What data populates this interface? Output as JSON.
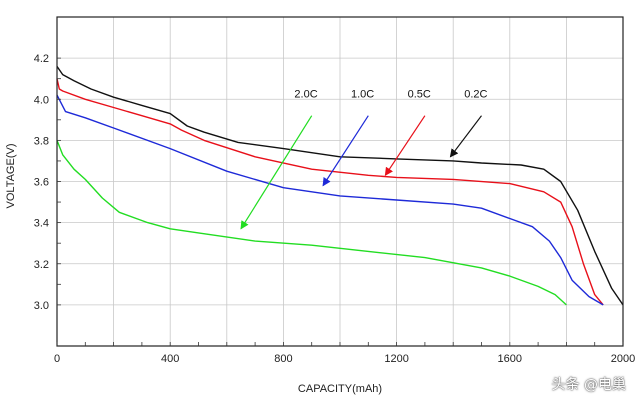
{
  "watermark": "头条 @电巢",
  "chart_data": {
    "type": "line",
    "title": "",
    "xlabel": "CAPACITY(mAh)",
    "ylabel": "VOLTAGE(V)",
    "xlim": [
      0,
      2000
    ],
    "ylim": [
      2.8,
      4.4
    ],
    "xticks": [
      0,
      400,
      800,
      1200,
      1600,
      2000
    ],
    "yticks": [
      3.0,
      3.2,
      3.4,
      3.6,
      3.8,
      4.0,
      4.2
    ],
    "grid": true,
    "series": [
      {
        "name": "0.2C",
        "color": "#111111",
        "points": [
          [
            0,
            4.16
          ],
          [
            20,
            4.12
          ],
          [
            60,
            4.09
          ],
          [
            120,
            4.05
          ],
          [
            200,
            4.01
          ],
          [
            300,
            3.97
          ],
          [
            400,
            3.93
          ],
          [
            460,
            3.87
          ],
          [
            520,
            3.84
          ],
          [
            640,
            3.79
          ],
          [
            800,
            3.76
          ],
          [
            1000,
            3.72
          ],
          [
            1200,
            3.71
          ],
          [
            1400,
            3.7
          ],
          [
            1500,
            3.69
          ],
          [
            1640,
            3.68
          ],
          [
            1720,
            3.66
          ],
          [
            1780,
            3.6
          ],
          [
            1840,
            3.46
          ],
          [
            1900,
            3.26
          ],
          [
            1960,
            3.08
          ],
          [
            2000,
            3.0
          ]
        ]
      },
      {
        "name": "0.5C",
        "color": "#e8101a",
        "points": [
          [
            0,
            4.1
          ],
          [
            8,
            4.05
          ],
          [
            20,
            4.04
          ],
          [
            100,
            4.0
          ],
          [
            200,
            3.96
          ],
          [
            300,
            3.92
          ],
          [
            400,
            3.88
          ],
          [
            440,
            3.85
          ],
          [
            520,
            3.8
          ],
          [
            700,
            3.72
          ],
          [
            900,
            3.66
          ],
          [
            1100,
            3.63
          ],
          [
            1200,
            3.62
          ],
          [
            1400,
            3.61
          ],
          [
            1600,
            3.59
          ],
          [
            1720,
            3.55
          ],
          [
            1780,
            3.5
          ],
          [
            1820,
            3.38
          ],
          [
            1860,
            3.2
          ],
          [
            1900,
            3.05
          ],
          [
            1930,
            3.0
          ]
        ]
      },
      {
        "name": "1.0C",
        "color": "#1e2ad8",
        "points": [
          [
            0,
            4.02
          ],
          [
            30,
            3.94
          ],
          [
            100,
            3.91
          ],
          [
            200,
            3.86
          ],
          [
            400,
            3.76
          ],
          [
            600,
            3.65
          ],
          [
            800,
            3.57
          ],
          [
            900,
            3.55
          ],
          [
            1000,
            3.53
          ],
          [
            1200,
            3.51
          ],
          [
            1400,
            3.49
          ],
          [
            1500,
            3.47
          ],
          [
            1600,
            3.42
          ],
          [
            1680,
            3.38
          ],
          [
            1740,
            3.31
          ],
          [
            1780,
            3.23
          ],
          [
            1820,
            3.12
          ],
          [
            1880,
            3.04
          ],
          [
            1930,
            3.0
          ]
        ]
      },
      {
        "name": "2.0C",
        "color": "#22dd22",
        "points": [
          [
            0,
            3.8
          ],
          [
            20,
            3.73
          ],
          [
            60,
            3.66
          ],
          [
            100,
            3.61
          ],
          [
            160,
            3.52
          ],
          [
            220,
            3.45
          ],
          [
            320,
            3.4
          ],
          [
            400,
            3.37
          ],
          [
            500,
            3.35
          ],
          [
            700,
            3.31
          ],
          [
            900,
            3.29
          ],
          [
            1100,
            3.26
          ],
          [
            1300,
            3.23
          ],
          [
            1500,
            3.18
          ],
          [
            1600,
            3.14
          ],
          [
            1700,
            3.09
          ],
          [
            1760,
            3.05
          ],
          [
            1800,
            3.0
          ]
        ]
      }
    ],
    "annotations": [
      {
        "text": "2.0C",
        "series": "2.0C",
        "label_at": [
          880,
          4.0
        ],
        "arrow_from": [
          900,
          3.92
        ],
        "arrow_to": [
          650,
          3.37
        ]
      },
      {
        "text": "1.0C",
        "series": "1.0C",
        "label_at": [
          1080,
          4.0
        ],
        "arrow_from": [
          1100,
          3.92
        ],
        "arrow_to": [
          940,
          3.58
        ]
      },
      {
        "text": "0.5C",
        "series": "0.5C",
        "label_at": [
          1280,
          4.0
        ],
        "arrow_from": [
          1300,
          3.92
        ],
        "arrow_to": [
          1160,
          3.63
        ]
      },
      {
        "text": "0.2C",
        "series": "0.2C",
        "label_at": [
          1480,
          4.0
        ],
        "arrow_from": [
          1500,
          3.92
        ],
        "arrow_to": [
          1390,
          3.72
        ]
      }
    ]
  }
}
